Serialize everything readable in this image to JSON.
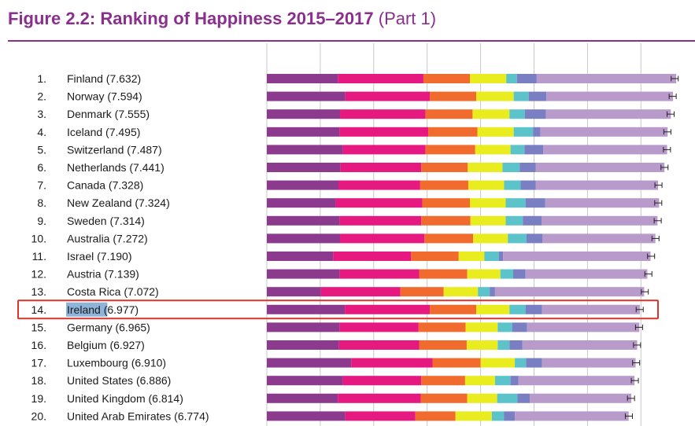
{
  "title": {
    "main": "Figure 2.2: Ranking of Happiness 2015–2017",
    "part": "(Part 1)"
  },
  "colors": {
    "title": "#8b2f8f",
    "highlight_box": "#d9352b",
    "highlight_text_bg": "#8fb4d9",
    "gridline": "#c8c8c8",
    "whisker": "#222222"
  },
  "chart_data": {
    "type": "bar",
    "stacked": true,
    "orientation": "horizontal",
    "title": "Figure 2.2: Ranking of Happiness 2015–2017 (Part 1)",
    "grid": true,
    "highlighted_rank": 14,
    "components": [
      {
        "color": "#8b3a8e"
      },
      {
        "color": "#e5197f"
      },
      {
        "color": "#f26b2e"
      },
      {
        "color": "#e9ec1e"
      },
      {
        "color": "#5bc3c9"
      },
      {
        "color": "#7a7fc4"
      },
      {
        "color": "#b89acb"
      }
    ],
    "rows": [
      {
        "rank": "1.",
        "country": "Finland",
        "score_label": "(7.632)",
        "score": 7.632,
        "segments": [
          1.33,
          1.6,
          0.87,
          0.68,
          0.2,
          0.37,
          2.61
        ]
      },
      {
        "rank": "2.",
        "country": "Norway",
        "score_label": "(7.594)",
        "score": 7.594,
        "segments": [
          1.47,
          1.58,
          0.87,
          0.7,
          0.28,
          0.33,
          2.37
        ]
      },
      {
        "rank": "3.",
        "country": "Denmark",
        "score_label": "(7.555)",
        "score": 7.555,
        "segments": [
          1.37,
          1.6,
          0.88,
          0.69,
          0.29,
          0.39,
          2.34
        ]
      },
      {
        "rank": "4.",
        "country": "Iceland",
        "score_label": "(7.495)",
        "score": 7.495,
        "segments": [
          1.36,
          1.66,
          0.92,
          0.68,
          0.36,
          0.14,
          2.38
        ]
      },
      {
        "rank": "5.",
        "country": "Switzerland",
        "score_label": "(7.487)",
        "score": 7.487,
        "segments": [
          1.42,
          1.55,
          0.93,
          0.66,
          0.26,
          0.35,
          2.32
        ]
      },
      {
        "rank": "6.",
        "country": "Netherlands",
        "score_label": "(7.441)",
        "score": 7.441,
        "segments": [
          1.38,
          1.51,
          0.87,
          0.65,
          0.32,
          0.3,
          2.41
        ]
      },
      {
        "rank": "7.",
        "country": "Canada",
        "score_label": "(7.328)",
        "score": 7.328,
        "segments": [
          1.34,
          1.53,
          0.9,
          0.67,
          0.31,
          0.28,
          2.29
        ]
      },
      {
        "rank": "8.",
        "country": "New Zealand",
        "score_label": "(7.324)",
        "score": 7.324,
        "segments": [
          1.29,
          1.62,
          0.89,
          0.67,
          0.37,
          0.37,
          2.13
        ]
      },
      {
        "rank": "9.",
        "country": "Sweden",
        "score_label": "(7.314)",
        "score": 7.314,
        "segments": [
          1.36,
          1.53,
          0.92,
          0.66,
          0.32,
          0.35,
          2.17
        ]
      },
      {
        "rank": "10.",
        "country": "Australia",
        "score_label": "(7.272)",
        "score": 7.272,
        "segments": [
          1.37,
          1.58,
          0.91,
          0.65,
          0.35,
          0.3,
          2.11
        ]
      },
      {
        "rank": "11.",
        "country": "Israel",
        "score_label": "(7.190)",
        "score": 7.19,
        "segments": [
          1.24,
          1.46,
          0.89,
          0.48,
          0.27,
          0.08,
          2.76
        ]
      },
      {
        "rank": "12.",
        "country": "Austria",
        "score_label": "(7.139)",
        "score": 7.139,
        "segments": [
          1.36,
          1.49,
          0.9,
          0.62,
          0.24,
          0.23,
          2.28
        ]
      },
      {
        "rank": "13.",
        "country": "Costa Rica",
        "score_label": "(7.072)",
        "score": 7.072,
        "segments": [
          1.01,
          1.49,
          0.81,
          0.64,
          0.22,
          0.1,
          2.79
        ]
      },
      {
        "rank": "14.",
        "country": "Ireland",
        "score_label": "(6.977)",
        "score": 6.977,
        "segments": [
          1.46,
          1.59,
          0.87,
          0.62,
          0.3,
          0.31,
          1.83
        ]
      },
      {
        "rank": "15.",
        "country": "Germany",
        "score_label": "(6.965)",
        "score": 6.965,
        "segments": [
          1.36,
          1.48,
          0.88,
          0.6,
          0.27,
          0.28,
          2.1
        ]
      },
      {
        "rank": "16.",
        "country": "Belgium",
        "score_label": "(6.927)",
        "score": 6.927,
        "segments": [
          1.35,
          1.5,
          0.89,
          0.58,
          0.22,
          0.24,
          2.15
        ]
      },
      {
        "rank": "17.",
        "country": "Luxembourg",
        "score_label": "(6.910)",
        "score": 6.91,
        "segments": [
          1.58,
          1.52,
          0.9,
          0.64,
          0.21,
          0.3,
          1.75
        ]
      },
      {
        "rank": "18.",
        "country": "United States",
        "score_label": "(6.886)",
        "score": 6.886,
        "segments": [
          1.42,
          1.47,
          0.82,
          0.56,
          0.29,
          0.15,
          2.17
        ]
      },
      {
        "rank": "19.",
        "country": "United Kingdom",
        "score_label": "(6.814)",
        "score": 6.814,
        "segments": [
          1.33,
          1.55,
          0.87,
          0.56,
          0.38,
          0.23,
          1.9
        ]
      },
      {
        "rank": "20.",
        "country": "United Arab Emirates",
        "score_label": "(6.774)",
        "score": 6.774,
        "segments": [
          1.47,
          1.31,
          0.75,
          0.68,
          0.23,
          0.2,
          2.13
        ]
      }
    ]
  }
}
